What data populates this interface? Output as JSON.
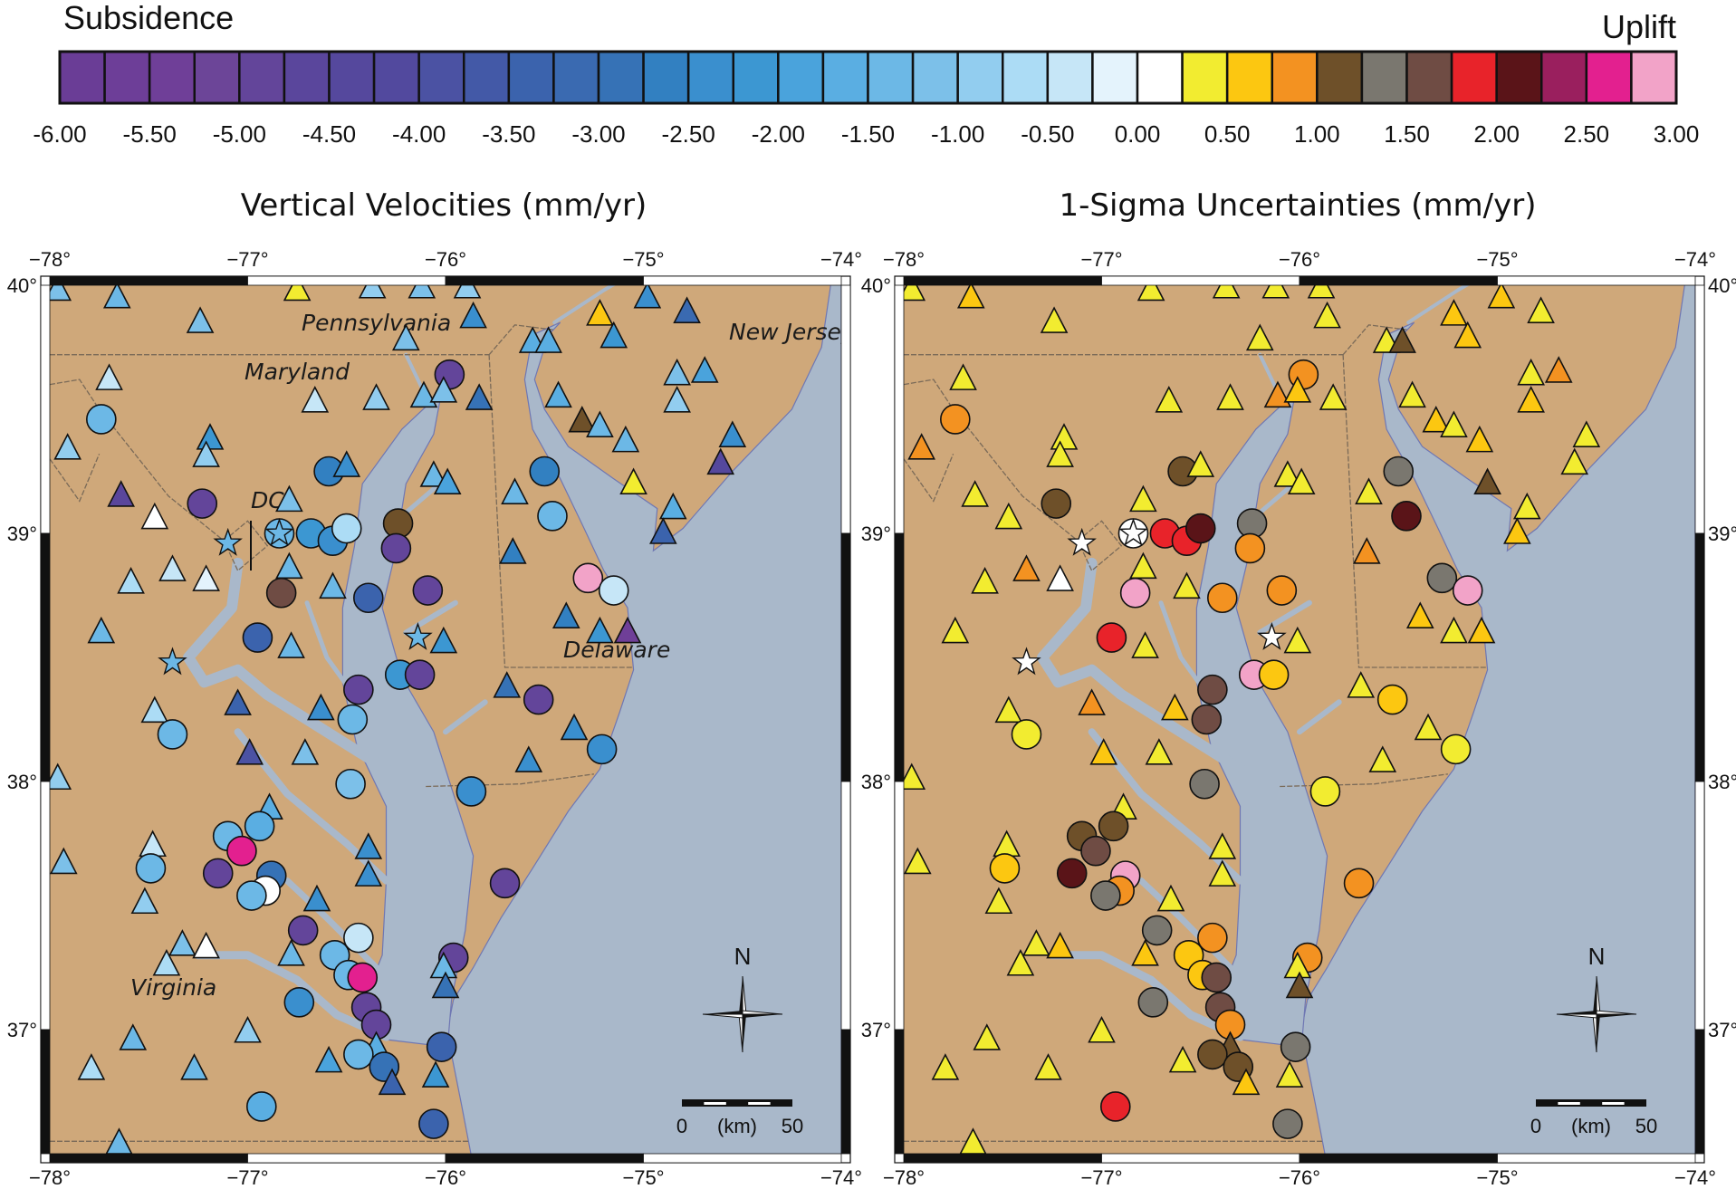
{
  "colorbar": {
    "left_label": "Subsidence",
    "right_label": "Uplift",
    "min": -6.0,
    "max": 3.0,
    "step": 0.25,
    "tick_labels": [
      "-6.00",
      "-5.50",
      "-5.00",
      "-4.50",
      "-4.00",
      "-3.50",
      "-3.00",
      "-2.50",
      "-2.00",
      "-1.50",
      "-1.00",
      "-0.50",
      "0.00",
      "0.50",
      "1.00",
      "1.50",
      "2.00",
      "2.50",
      "3.00"
    ],
    "colors": [
      "#6a3d96",
      "#6d3e98",
      "#6f3f98",
      "#6c4598",
      "#63459a",
      "#5a469c",
      "#55489d",
      "#52499e",
      "#4b52a3",
      "#4359a7",
      "#3b63ad",
      "#3a6ab1",
      "#3672b6",
      "#3280c1",
      "#3a8fce",
      "#3c97d2",
      "#4aa3dc",
      "#5aaee2",
      "#6cb8e6",
      "#7cc0e9",
      "#92cdef",
      "#acdcf5",
      "#c6e6f7",
      "#e4f3fc",
      "#ffffff",
      "#f2ec30",
      "#fcc711",
      "#f39221",
      "#6e5029",
      "#7a776f",
      "#6f4c44",
      "#e8232a",
      "#5a1418",
      "#9a1f5e",
      "#e3208f",
      "#f2a3c8"
    ]
  },
  "map_colors": {
    "land": "#cfa87a",
    "water": "#a9b8ca",
    "coastline": "#6f77b3"
  },
  "maps": [
    {
      "title": "Vertical Velocities (mm/yr)",
      "value_key": "velocity",
      "place_labels": [
        "Pennsylvania",
        "Maryland",
        "New Jersey",
        "DC",
        "Delaware",
        "Virginia"
      ]
    },
    {
      "title": "1-Sigma Uncertainties (mm/yr)",
      "value_key": "sigma",
      "place_labels": []
    }
  ],
  "axes": {
    "lon_range": [
      -78,
      -74
    ],
    "lat_range": [
      36.5,
      40
    ],
    "lon_ticks": [
      "−78°",
      "−77°",
      "−76°",
      "−75°",
      "−74°"
    ],
    "lat_ticks": [
      "40°",
      "39°",
      "38°",
      "37°"
    ]
  },
  "scale_bar": {
    "start": "0",
    "unit": "(km)",
    "end": "50"
  },
  "north_arrow": {
    "label": "N"
  },
  "station_fields": [
    "lon",
    "lat",
    "marker",
    "velocity",
    "sigma"
  ],
  "stations": [
    [
      -77.96,
      39.98,
      "triangle",
      -1.1,
      0.3
    ],
    [
      -77.66,
      39.95,
      "triangle",
      -1.3,
      0.6
    ],
    [
      -77.24,
      39.85,
      "triangle",
      -1.1,
      0.3
    ],
    [
      -76.75,
      39.98,
      "triangle",
      0.4,
      0.3
    ],
    [
      -76.37,
      39.99,
      "triangle",
      -0.8,
      0.3
    ],
    [
      -76.12,
      39.99,
      "triangle",
      -1.1,
      0.3
    ],
    [
      -75.89,
      39.99,
      "triangle",
      -0.9,
      0.3
    ],
    [
      -75.86,
      39.87,
      "triangle",
      -2.4,
      0.3
    ],
    [
      -76.2,
      39.78,
      "triangle",
      -1.1,
      0.3
    ],
    [
      -75.22,
      39.88,
      "triangle",
      0.6,
      0.6
    ],
    [
      -74.98,
      39.95,
      "triangle",
      -2.4,
      0.6
    ],
    [
      -74.78,
      39.89,
      "triangle",
      -3.2,
      0.3
    ],
    [
      -75.56,
      39.77,
      "triangle",
      -1.6,
      0.3
    ],
    [
      -75.48,
      39.77,
      "triangle",
      -1.6,
      1.1
    ],
    [
      -75.15,
      39.79,
      "triangle",
      -2.2,
      0.6
    ],
    [
      -77.7,
      39.62,
      "triangle",
      -0.3,
      0.3
    ],
    [
      -75.98,
      39.64,
      "circle",
      -5.0,
      0.9
    ],
    [
      -75.83,
      39.54,
      "triangle",
      -2.8,
      0.3
    ],
    [
      -76.66,
      39.53,
      "triangle",
      -0.4,
      0.3
    ],
    [
      -76.35,
      39.54,
      "triangle",
      -0.9,
      0.3
    ],
    [
      -76.11,
      39.55,
      "triangle",
      -1.3,
      0.9
    ],
    [
      -76.01,
      39.57,
      "triangle",
      -1.2,
      0.6
    ],
    [
      -75.43,
      39.55,
      "triangle",
      -1.6,
      0.3
    ],
    [
      -74.83,
      39.64,
      "triangle",
      -1.1,
      0.3
    ],
    [
      -74.69,
      39.65,
      "triangle",
      -2.0,
      0.9
    ],
    [
      -74.83,
      39.53,
      "triangle",
      -0.9,
      0.6
    ],
    [
      -77.74,
      39.46,
      "circle",
      -1.3,
      0.9
    ],
    [
      -75.31,
      39.45,
      "triangle",
      1.1,
      0.6
    ],
    [
      -75.22,
      39.43,
      "triangle",
      -1.3,
      0.3
    ],
    [
      -75.09,
      39.37,
      "triangle",
      -1.3,
      0.6
    ],
    [
      -77.91,
      39.34,
      "triangle",
      -0.9,
      0.9
    ],
    [
      -77.19,
      39.38,
      "triangle",
      -2.2,
      0.3
    ],
    [
      -77.21,
      39.31,
      "triangle",
      -0.9,
      0.3
    ],
    [
      -74.55,
      39.39,
      "triangle",
      -2.4,
      0.3
    ],
    [
      -74.61,
      39.28,
      "triangle",
      -4.5,
      0.3
    ],
    [
      -76.59,
      39.25,
      "circle",
      -2.6,
      1.1
    ],
    [
      -76.5,
      39.27,
      "triangle",
      -2.3,
      0.3
    ],
    [
      -76.79,
      39.13,
      "triangle",
      -1.2,
      0.3
    ],
    [
      -76.06,
      39.23,
      "triangle",
      -1.4,
      0.3
    ],
    [
      -75.99,
      39.2,
      "triangle",
      -1.8,
      0.3
    ],
    [
      -75.5,
      39.25,
      "circle",
      -2.6,
      1.4
    ],
    [
      -75.65,
      39.16,
      "triangle",
      -1.3,
      0.3
    ],
    [
      -75.05,
      39.2,
      "triangle",
      0.4,
      1.1
    ],
    [
      -77.64,
      39.15,
      "triangle",
      -4.6,
      0.3
    ],
    [
      -77.23,
      39.12,
      "circle",
      -5.0,
      1.1
    ],
    [
      -77.47,
      39.06,
      "triangle",
      0.1,
      0.3
    ],
    [
      -75.46,
      39.07,
      "circle",
      -1.3,
      2.1
    ],
    [
      -74.85,
      39.1,
      "triangle",
      -1.7,
      0.3
    ],
    [
      -74.9,
      39.0,
      "triangle",
      -3.5,
      0.6
    ],
    [
      -76.84,
      39.0,
      "star-circle",
      -1.5,
      0.1
    ],
    [
      -76.68,
      39.0,
      "circle",
      -2.2,
      1.9
    ],
    [
      -76.57,
      38.97,
      "circle",
      -2.3,
      1.9
    ],
    [
      -76.5,
      39.02,
      "circle",
      -0.6,
      2.1
    ],
    [
      -76.24,
      39.04,
      "circle",
      1.1,
      1.4
    ],
    [
      -76.25,
      38.94,
      "circle",
      -5.0,
      0.9
    ],
    [
      -77.1,
      38.96,
      "star",
      -1.3,
      0.1
    ],
    [
      -75.66,
      38.92,
      "triangle",
      -2.6,
      0.9
    ],
    [
      -77.59,
      38.8,
      "triangle",
      -0.6,
      0.3
    ],
    [
      -77.38,
      38.85,
      "triangle",
      -0.3,
      0.9
    ],
    [
      -77.21,
      38.81,
      "triangle",
      -0.1,
      0.1
    ],
    [
      -76.79,
      38.86,
      "triangle",
      -1.4,
      0.3
    ],
    [
      -76.83,
      38.76,
      "circle",
      1.6,
      2.9
    ],
    [
      -76.57,
      38.78,
      "triangle",
      -1.4,
      0.3
    ],
    [
      -76.39,
      38.74,
      "circle",
      -3.5,
      0.9
    ],
    [
      -76.09,
      38.77,
      "circle",
      -5.0,
      0.9
    ],
    [
      -75.28,
      38.82,
      "circle",
      2.9,
      1.4
    ],
    [
      -75.15,
      38.77,
      "circle",
      -0.3,
      2.9
    ],
    [
      -77.74,
      38.6,
      "triangle",
      -1.3,
      0.3
    ],
    [
      -76.95,
      38.58,
      "circle",
      -3.3,
      1.9
    ],
    [
      -76.78,
      38.54,
      "triangle",
      -1.3,
      0.3
    ],
    [
      -77.38,
      38.48,
      "star",
      -1.3,
      0.1
    ],
    [
      -76.14,
      38.58,
      "star",
      -1.4,
      0.1
    ],
    [
      -76.01,
      38.56,
      "triangle",
      -2.1,
      0.3
    ],
    [
      -75.39,
      38.66,
      "triangle",
      -2.7,
      0.6
    ],
    [
      -75.22,
      38.6,
      "triangle",
      -2.1,
      0.3
    ],
    [
      -75.08,
      38.6,
      "triangle",
      -5.5,
      0.6
    ],
    [
      -76.23,
      38.43,
      "circle",
      -2.1,
      2.9
    ],
    [
      -76.13,
      38.43,
      "circle",
      -5.0,
      0.6
    ],
    [
      -76.44,
      38.37,
      "circle",
      -5.0,
      1.6
    ],
    [
      -75.69,
      38.38,
      "triangle",
      -3.0,
      0.3
    ],
    [
      -75.53,
      38.33,
      "circle",
      -5.0,
      0.6
    ],
    [
      -76.63,
      38.29,
      "triangle",
      -2.3,
      0.6
    ],
    [
      -76.47,
      38.25,
      "circle",
      -1.3,
      1.6
    ],
    [
      -77.05,
      38.31,
      "triangle",
      -3.5,
      0.9
    ],
    [
      -77.47,
      38.28,
      "triangle",
      -0.7,
      0.3
    ],
    [
      -77.38,
      38.19,
      "circle",
      -1.3,
      0.3
    ],
    [
      -76.99,
      38.11,
      "triangle",
      -3.8,
      0.6
    ],
    [
      -76.71,
      38.11,
      "triangle",
      -1.2,
      0.3
    ],
    [
      -75.58,
      38.08,
      "triangle",
      -2.3,
      0.3
    ],
    [
      -75.35,
      38.21,
      "triangle",
      -2.4,
      0.3
    ],
    [
      -75.21,
      38.13,
      "circle",
      -2.4,
      0.3
    ],
    [
      -77.96,
      38.01,
      "triangle",
      -1.0,
      0.3
    ],
    [
      -76.48,
      37.99,
      "circle",
      -1.1,
      1.4
    ],
    [
      -75.87,
      37.96,
      "circle",
      -2.4,
      0.3
    ],
    [
      -76.89,
      37.89,
      "triangle",
      -1.6,
      0.3
    ],
    [
      -77.1,
      37.78,
      "circle",
      -1.3,
      1.1
    ],
    [
      -76.94,
      37.82,
      "circle",
      -1.6,
      1.1
    ],
    [
      -77.03,
      37.72,
      "circle",
      2.6,
      1.6
    ],
    [
      -77.15,
      37.63,
      "circle",
      -5.0,
      2.1
    ],
    [
      -77.48,
      37.74,
      "triangle",
      -0.5,
      0.3
    ],
    [
      -77.93,
      37.67,
      "triangle",
      -1.2,
      0.3
    ],
    [
      -77.49,
      37.65,
      "circle",
      -1.3,
      0.6
    ],
    [
      -76.88,
      37.62,
      "circle",
      -3.0,
      2.9
    ],
    [
      -76.91,
      37.56,
      "circle",
      0.1,
      0.9
    ],
    [
      -76.98,
      37.54,
      "circle",
      -1.3,
      1.4
    ],
    [
      -76.65,
      37.52,
      "triangle",
      -2.3,
      0.3
    ],
    [
      -76.39,
      37.73,
      "triangle",
      -2.4,
      0.3
    ],
    [
      -76.39,
      37.62,
      "triangle",
      -2.4,
      0.3
    ],
    [
      -75.7,
      37.59,
      "circle",
      -5.0,
      0.9
    ],
    [
      -77.52,
      37.51,
      "triangle",
      -0.9,
      0.3
    ],
    [
      -76.72,
      37.4,
      "circle",
      -5.0,
      1.4
    ],
    [
      -76.44,
      37.37,
      "circle",
      -0.4,
      0.9
    ],
    [
      -76.56,
      37.3,
      "circle",
      -1.3,
      0.6
    ],
    [
      -76.49,
      37.22,
      "circle",
      -1.3,
      0.6
    ],
    [
      -76.42,
      37.21,
      "circle",
      2.6,
      1.6
    ],
    [
      -76.78,
      37.3,
      "triangle",
      -1.4,
      0.6
    ],
    [
      -75.96,
      37.29,
      "circle",
      -5.0,
      0.9
    ],
    [
      -76.01,
      37.25,
      "triangle",
      -1.4,
      0.3
    ],
    [
      -76.0,
      37.17,
      "triangle",
      -3.0,
      1.1
    ],
    [
      -77.33,
      37.34,
      "triangle",
      -1.2,
      0.3
    ],
    [
      -77.21,
      37.33,
      "triangle",
      0.1,
      0.6
    ],
    [
      -77.41,
      37.26,
      "triangle",
      -0.6,
      0.3
    ],
    [
      -76.74,
      37.11,
      "circle",
      -2.4,
      1.4
    ],
    [
      -76.4,
      37.09,
      "circle",
      -5.0,
      1.6
    ],
    [
      -76.35,
      37.02,
      "circle",
      -5.0,
      0.9
    ],
    [
      -77.58,
      36.96,
      "triangle",
      -1.3,
      0.3
    ],
    [
      -77.0,
      36.99,
      "triangle",
      -0.9,
      0.3
    ],
    [
      -76.35,
      36.93,
      "triangle",
      -1.6,
      1.1
    ],
    [
      -76.44,
      36.9,
      "circle",
      -1.3,
      1.1
    ],
    [
      -76.31,
      36.85,
      "circle",
      -3.0,
      1.1
    ],
    [
      -76.02,
      36.93,
      "circle",
      -3.5,
      1.4
    ],
    [
      -76.59,
      36.87,
      "triangle",
      -1.8,
      0.3
    ],
    [
      -77.79,
      36.84,
      "triangle",
      -0.6,
      0.3
    ],
    [
      -77.27,
      36.84,
      "triangle",
      -1.4,
      0.3
    ],
    [
      -76.27,
      36.78,
      "triangle",
      -3.3,
      0.6
    ],
    [
      -76.05,
      36.81,
      "triangle",
      -2.1,
      0.3
    ],
    [
      -76.93,
      36.69,
      "circle",
      -1.6,
      1.9
    ],
    [
      -76.06,
      36.62,
      "circle",
      -3.5,
      1.4
    ],
    [
      -77.65,
      36.54,
      "triangle",
      -1.3,
      0.3
    ]
  ]
}
